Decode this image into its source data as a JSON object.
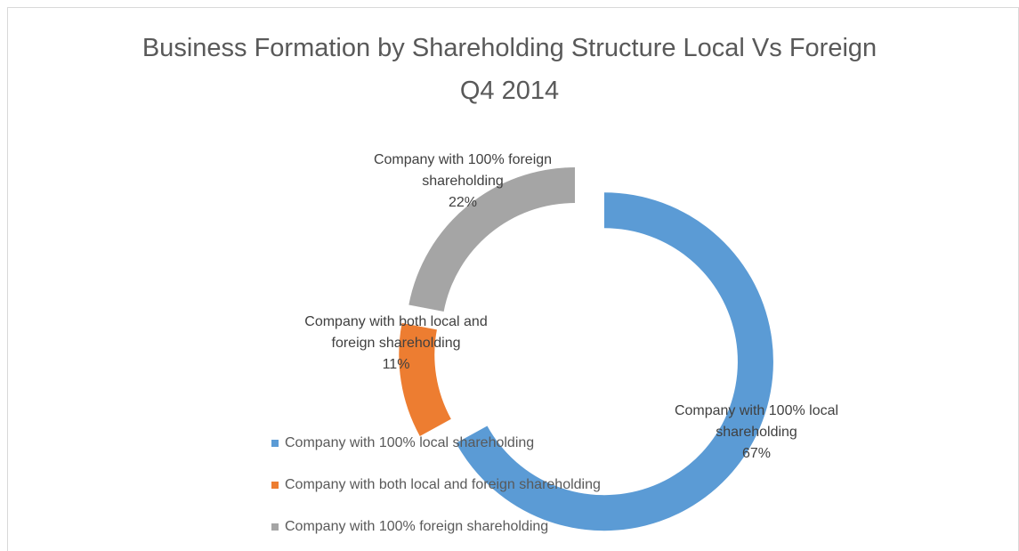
{
  "chart_data": {
    "type": "doughnut",
    "title": "Business Formation by Shareholding Structure Local Vs Foreign Q4 2014",
    "categories": [
      "Company with 100% local shareholding",
      "Company with both local and foreign shareholding",
      "Company with 100% foreign shareholding"
    ],
    "values": [
      67,
      11,
      22
    ],
    "value_labels": [
      "67%",
      "11%",
      "22%"
    ],
    "colors": [
      "#5b9bd5",
      "#ed7d31",
      "#a5a5a5"
    ],
    "legend": "bottom-left"
  }
}
